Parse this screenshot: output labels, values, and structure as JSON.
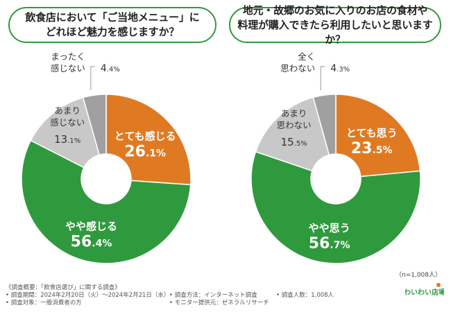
{
  "questions": [
    "飲食店において「ご当地メニュー」に\nどれほど魅力を感じますか？",
    "地元・故郷のお気に入りのお店の食材や\n料理が購入できたら利用したいと思いますか？"
  ],
  "chart_data": [
    {
      "type": "pie",
      "title": "飲食店において「ご当地メニュー」にどれほど魅力を感じますか？",
      "categories": [
        "とても感じる",
        "やや感じる",
        "あまり感じない",
        "まったく感じない"
      ],
      "values": [
        26.1,
        56.4,
        13.1,
        4.4
      ],
      "value_labels": [
        "26.1%",
        "56.4%",
        "13.1%",
        "4.4%"
      ],
      "outer_labels": [
        null,
        null,
        "あまり\n感じない",
        "まったく\n感じない"
      ]
    },
    {
      "type": "pie",
      "title": "地元・故郷のお気に入りのお店の食材や料理が購入できたら利用したいと思いますか？",
      "categories": [
        "とても思う",
        "やや思う",
        "あまり思わない",
        "全く思わない"
      ],
      "values": [
        23.5,
        56.7,
        15.5,
        4.3
      ],
      "value_labels": [
        "23.5%",
        "56.7%",
        "15.5%",
        "4.3%"
      ],
      "outer_labels": [
        null,
        null,
        "あまり\n思わない",
        "全く\n思わない"
      ]
    }
  ],
  "colors": {
    "orange": "#e07a22",
    "green": "#2f9a3d",
    "lightgray": "#c8c8c8",
    "gray": "#a0a0a0",
    "accent": "#2f9a3d"
  },
  "sample_note": "（n=1,008人）",
  "footer": {
    "title": "《調査概要：「飲食店選び」に関する調査》",
    "period": "• 調査期間：2024年2月20日（火）～2024年2月21日（水）",
    "method": "• 調査方法：インターネット調査",
    "people": "• 調査人数：1,008人",
    "target": "• 調査対象：一般消費者の方",
    "provider": "• モニター提供元：ゼネラルリサーチ"
  },
  "logo_text": "わいわい店場"
}
